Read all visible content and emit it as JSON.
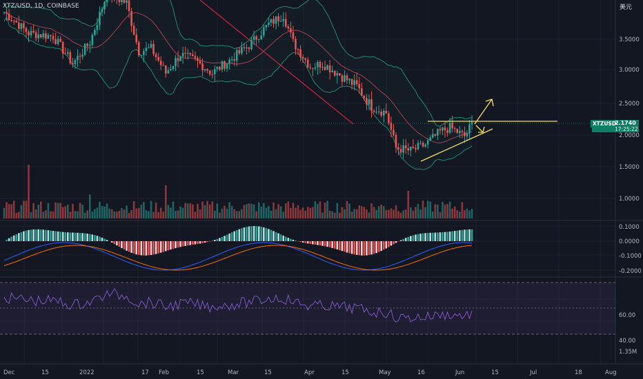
{
  "header": {
    "symbol_title": "XTZ/USD, 1D, COINBASE",
    "currency": "美元"
  },
  "price_badge": {
    "symbol": "XTZUSD",
    "price": "2.1740",
    "countdown": "17:25:22"
  },
  "price_axis": [
    "3.5000",
    "3.0000",
    "2.5000",
    "2.0000",
    "1.5000",
    "1.0000"
  ],
  "macd_axis": [
    "0.1000",
    "0.0000",
    "-0.1000",
    "-0.2000"
  ],
  "rsi_axis": [
    "60.00",
    "40.00",
    "1.35M"
  ],
  "time_axis": [
    "Dec",
    "15",
    "2022",
    "17",
    "Feb",
    "15",
    "Mar",
    "15",
    "Apr",
    "15",
    "May",
    "16",
    "Jun",
    "15",
    "Jul",
    "18",
    "Aug"
  ],
  "colors": {
    "up": "#26a69a",
    "down": "#ef5350",
    "bb_band": "#1f8a6c",
    "bb_basis": "#a8404f",
    "trend": "#f7e05a",
    "macd_line": "#2962ff",
    "signal_line": "#ff6d00",
    "rsi_line": "#7e57c2"
  },
  "chart_data": {
    "type": "candlestick",
    "series_anchor_closes": [
      [
        0,
        3.95
      ],
      [
        10,
        3.6
      ],
      [
        20,
        3.55
      ],
      [
        28,
        3.1
      ],
      [
        35,
        3.45
      ],
      [
        42,
        4.25
      ],
      [
        50,
        4.1
      ],
      [
        55,
        3.3
      ],
      [
        60,
        3.35
      ],
      [
        66,
        2.95
      ],
      [
        72,
        3.25
      ],
      [
        78,
        3.15
      ],
      [
        85,
        2.95
      ],
      [
        92,
        3.15
      ],
      [
        100,
        3.4
      ],
      [
        108,
        3.75
      ],
      [
        114,
        3.9
      ],
      [
        118,
        3.45
      ],
      [
        125,
        3.05
      ],
      [
        130,
        3.1
      ],
      [
        136,
        2.95
      ],
      [
        144,
        2.75
      ],
      [
        150,
        2.45
      ],
      [
        156,
        2.35
      ],
      [
        160,
        1.8
      ],
      [
        166,
        1.75
      ],
      [
        172,
        1.85
      ],
      [
        178,
        2.05
      ],
      [
        182,
        2.12
      ],
      [
        188,
        1.98
      ],
      [
        191,
        2.17
      ]
    ]
  }
}
